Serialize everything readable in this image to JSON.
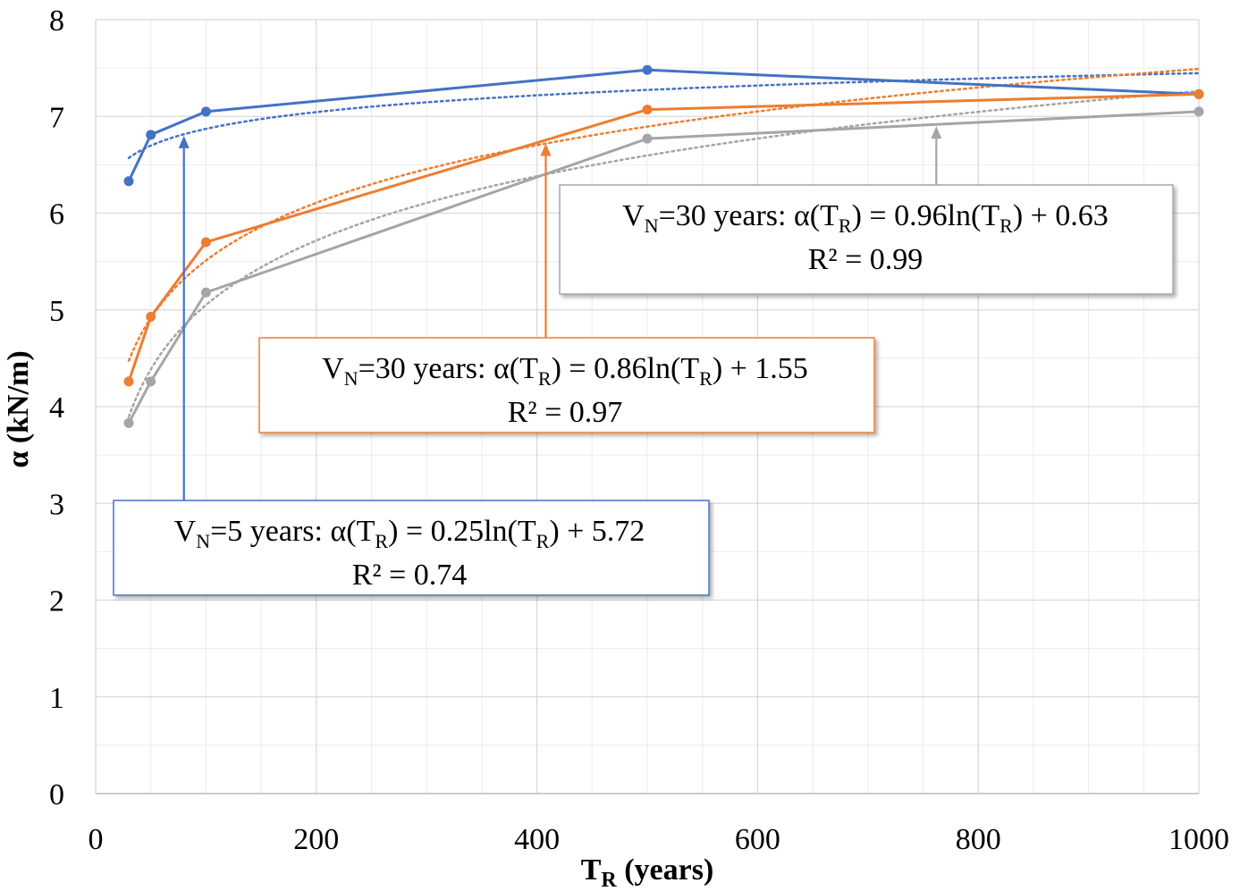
{
  "chart_data": {
    "type": "line",
    "xlabel": {
      "main": "T",
      "sub": "R",
      "rest": " (years)"
    },
    "ylabel": "α (kN/m)",
    "xlim": [
      0,
      1000
    ],
    "ylim": [
      0,
      8
    ],
    "x_ticks": [
      "0",
      "200",
      "400",
      "600",
      "800",
      "1000"
    ],
    "y_ticks": [
      "0",
      "1",
      "2",
      "3",
      "4",
      "5",
      "6",
      "7",
      "8"
    ],
    "grid": true,
    "x": [
      30,
      50,
      100,
      500,
      1000
    ],
    "series": [
      {
        "color": "#4472C4",
        "values": [
          6.33,
          6.81,
          7.05,
          7.48,
          7.23
        ],
        "trend": {
          "a": 0.25,
          "b": 5.72
        }
      },
      {
        "color": "#ED7D31",
        "values": [
          4.26,
          4.93,
          5.7,
          7.07,
          7.23
        ],
        "trend": {
          "a": 0.86,
          "b": 1.55
        }
      },
      {
        "color": "#A5A5A5",
        "values": [
          3.83,
          4.26,
          5.18,
          6.77,
          7.05
        ],
        "trend": {
          "a": 0.96,
          "b": 0.63
        }
      }
    ],
    "annotations": [
      {
        "series": 0,
        "border": "#4472C4",
        "v": "V",
        "n": "N",
        "eq_a": "=5 years: α(T",
        "r": "R",
        "eq_b": ") = 0.25ln(T",
        "r2": "R",
        "eq_c": ") + 5.72",
        "r_squared": "R² = 0.74",
        "arrow_to": [
          80,
          6.8
        ]
      },
      {
        "series": 1,
        "border": "#ED7D31",
        "v": "V",
        "n": "N",
        "eq_a": "=30 years: α(T",
        "r": "R",
        "eq_b": ") = 0.86ln(T",
        "r2": "R",
        "eq_c": ") + 1.55",
        "r_squared": "R² = 0.97",
        "arrow_to": [
          408,
          6.72
        ]
      },
      {
        "series": 2,
        "border": "#A5A5A5",
        "v": "V",
        "n": "N",
        "eq_a": "=30 years: α(T",
        "r": "R",
        "eq_b": ") = 0.96ln(T",
        "r2": "R",
        "eq_c": ") + 0.63",
        "r_squared": "R² = 0.99",
        "arrow_to": [
          762,
          6.9
        ]
      }
    ]
  }
}
